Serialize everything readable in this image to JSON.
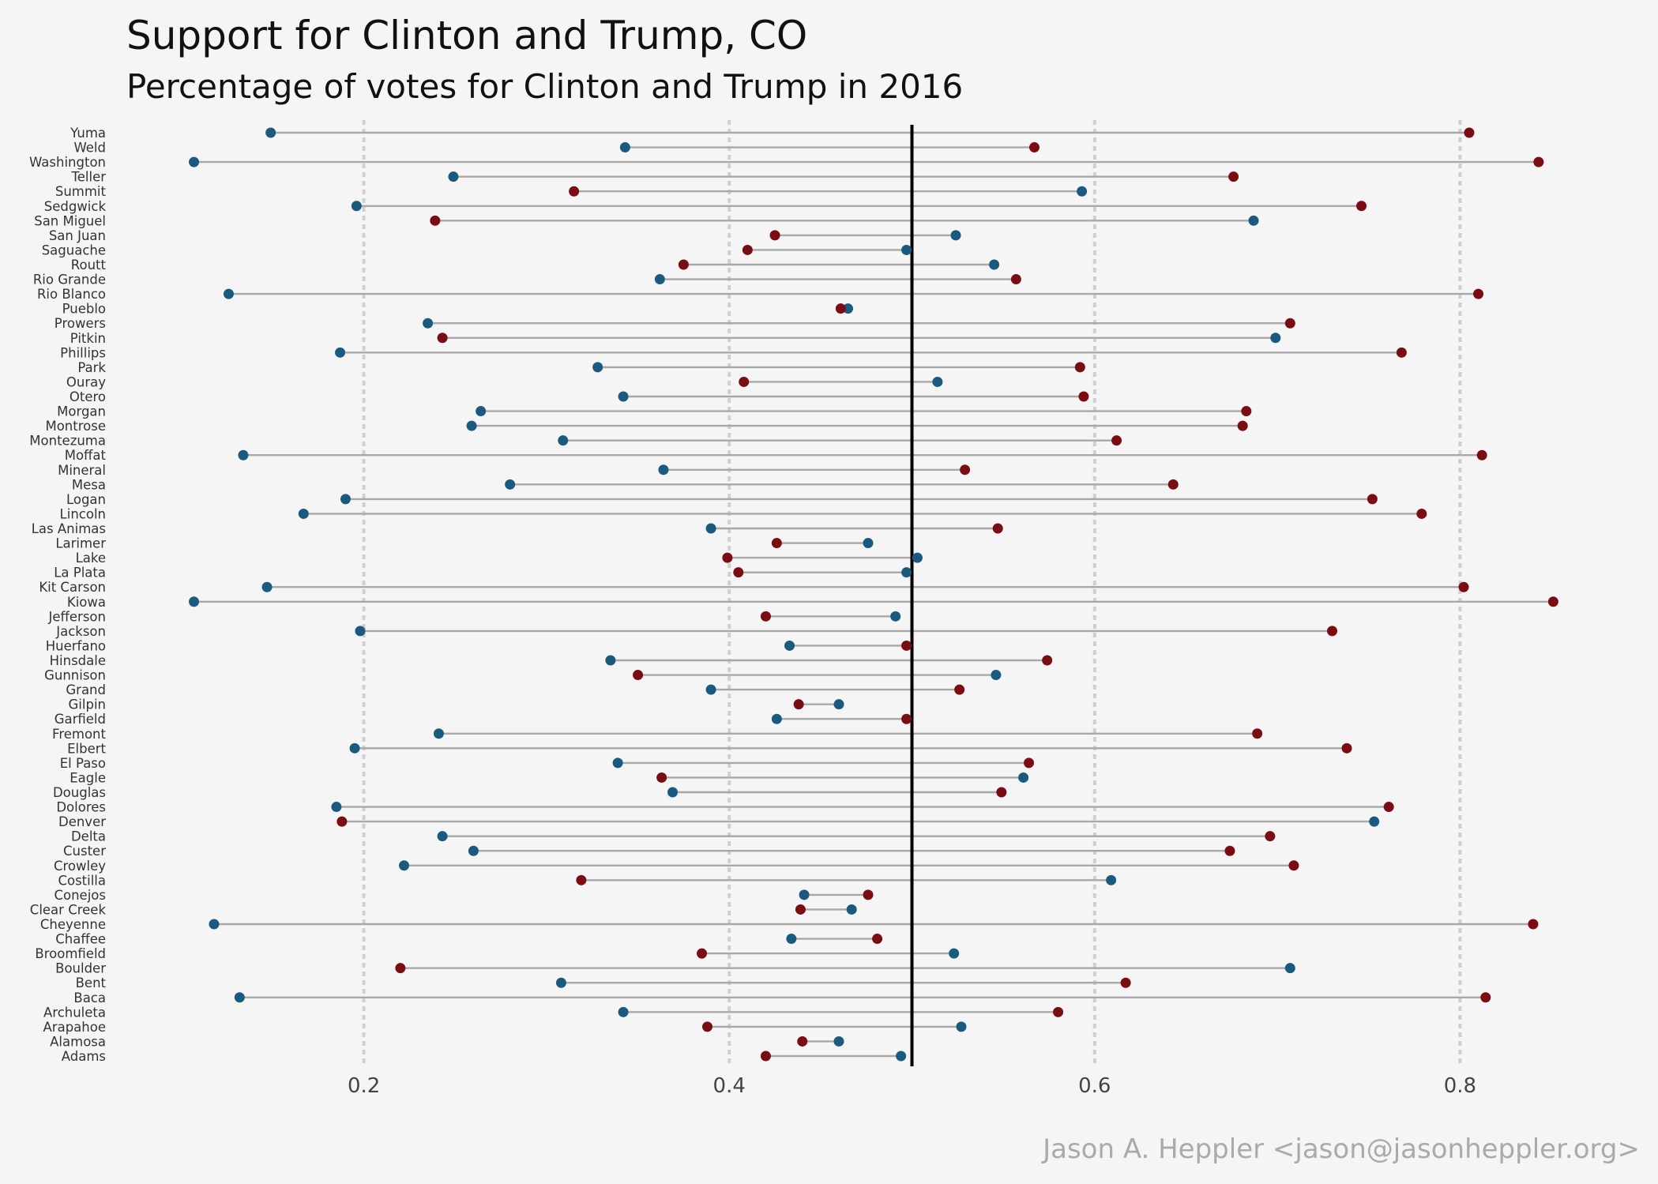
{
  "title": "Support for Clinton and Trump,  CO",
  "subtitle": "Percentage of votes for Clinton and Trump in 2016",
  "caption": "Jason A. Heppler <jason@jasonheppler.org>",
  "colors": {
    "clinton": "#1b5a7f",
    "trump": "#7a0d14",
    "segment": "#a8a8a8",
    "midline": "#000000",
    "background": "#f5f5f5"
  },
  "chart_data": {
    "type": "dumbbell",
    "x_ticks": [
      0.2,
      0.4,
      0.6,
      0.8
    ],
    "x_tick_labels": [
      "0.2",
      "0.4",
      "0.6",
      "0.8"
    ],
    "xlim": [
      0.067,
      0.869
    ],
    "reference_line": 0.5,
    "series": [
      {
        "key": "clinton",
        "color": "#1b5a7f"
      },
      {
        "key": "trump",
        "color": "#7a0d14"
      }
    ],
    "counties": [
      {
        "name": "Yuma",
        "clinton": 0.149,
        "trump": 0.805
      },
      {
        "name": "Weld",
        "clinton": 0.343,
        "trump": 0.567
      },
      {
        "name": "Washington",
        "clinton": 0.107,
        "trump": 0.843
      },
      {
        "name": "Teller",
        "clinton": 0.249,
        "trump": 0.676
      },
      {
        "name": "Summit",
        "clinton": 0.593,
        "trump": 0.315
      },
      {
        "name": "Sedgwick",
        "clinton": 0.196,
        "trump": 0.746
      },
      {
        "name": "San Miguel",
        "clinton": 0.687,
        "trump": 0.239
      },
      {
        "name": "San Juan",
        "clinton": 0.524,
        "trump": 0.425
      },
      {
        "name": "Saguache",
        "clinton": 0.497,
        "trump": 0.41
      },
      {
        "name": "Routt",
        "clinton": 0.545,
        "trump": 0.375
      },
      {
        "name": "Rio Grande",
        "clinton": 0.362,
        "trump": 0.557
      },
      {
        "name": "Rio Blanco",
        "clinton": 0.126,
        "trump": 0.81
      },
      {
        "name": "Pueblo",
        "clinton": 0.465,
        "trump": 0.461
      },
      {
        "name": "Prowers",
        "clinton": 0.235,
        "trump": 0.707
      },
      {
        "name": "Pitkin",
        "clinton": 0.699,
        "trump": 0.243
      },
      {
        "name": "Phillips",
        "clinton": 0.187,
        "trump": 0.768
      },
      {
        "name": "Park",
        "clinton": 0.328,
        "trump": 0.592
      },
      {
        "name": "Ouray",
        "clinton": 0.514,
        "trump": 0.408
      },
      {
        "name": "Otero",
        "clinton": 0.342,
        "trump": 0.594
      },
      {
        "name": "Morgan",
        "clinton": 0.264,
        "trump": 0.683
      },
      {
        "name": "Montrose",
        "clinton": 0.259,
        "trump": 0.681
      },
      {
        "name": "Montezuma",
        "clinton": 0.309,
        "trump": 0.612
      },
      {
        "name": "Moffat",
        "clinton": 0.134,
        "trump": 0.812
      },
      {
        "name": "Mineral",
        "clinton": 0.364,
        "trump": 0.529
      },
      {
        "name": "Mesa",
        "clinton": 0.28,
        "trump": 0.643
      },
      {
        "name": "Logan",
        "clinton": 0.19,
        "trump": 0.752
      },
      {
        "name": "Lincoln",
        "clinton": 0.167,
        "trump": 0.779
      },
      {
        "name": "Las Animas",
        "clinton": 0.39,
        "trump": 0.547
      },
      {
        "name": "Larimer",
        "clinton": 0.476,
        "trump": 0.426
      },
      {
        "name": "Lake",
        "clinton": 0.503,
        "trump": 0.399
      },
      {
        "name": "La Plata",
        "clinton": 0.497,
        "trump": 0.405
      },
      {
        "name": "Kit Carson",
        "clinton": 0.147,
        "trump": 0.802
      },
      {
        "name": "Kiowa",
        "clinton": 0.107,
        "trump": 0.851
      },
      {
        "name": "Jefferson",
        "clinton": 0.491,
        "trump": 0.42
      },
      {
        "name": "Jackson",
        "clinton": 0.198,
        "trump": 0.73
      },
      {
        "name": "Huerfano",
        "clinton": 0.433,
        "trump": 0.497
      },
      {
        "name": "Hinsdale",
        "clinton": 0.335,
        "trump": 0.574
      },
      {
        "name": "Gunnison",
        "clinton": 0.546,
        "trump": 0.35
      },
      {
        "name": "Grand",
        "clinton": 0.39,
        "trump": 0.526
      },
      {
        "name": "Gilpin",
        "clinton": 0.46,
        "trump": 0.438
      },
      {
        "name": "Garfield",
        "clinton": 0.426,
        "trump": 0.497
      },
      {
        "name": "Fremont",
        "clinton": 0.241,
        "trump": 0.689
      },
      {
        "name": "Elbert",
        "clinton": 0.195,
        "trump": 0.738
      },
      {
        "name": "El Paso",
        "clinton": 0.339,
        "trump": 0.564
      },
      {
        "name": "Eagle",
        "clinton": 0.561,
        "trump": 0.363
      },
      {
        "name": "Douglas",
        "clinton": 0.369,
        "trump": 0.549
      },
      {
        "name": "Dolores",
        "clinton": 0.185,
        "trump": 0.761
      },
      {
        "name": "Denver",
        "clinton": 0.753,
        "trump": 0.188
      },
      {
        "name": "Delta",
        "clinton": 0.243,
        "trump": 0.696
      },
      {
        "name": "Custer",
        "clinton": 0.26,
        "trump": 0.674
      },
      {
        "name": "Crowley",
        "clinton": 0.222,
        "trump": 0.709
      },
      {
        "name": "Costilla",
        "clinton": 0.609,
        "trump": 0.319
      },
      {
        "name": "Conejos",
        "clinton": 0.441,
        "trump": 0.476
      },
      {
        "name": "Clear Creek",
        "clinton": 0.467,
        "trump": 0.439
      },
      {
        "name": "Cheyenne",
        "clinton": 0.118,
        "trump": 0.84
      },
      {
        "name": "Chaffee",
        "clinton": 0.434,
        "trump": 0.481
      },
      {
        "name": "Broomfield",
        "clinton": 0.523,
        "trump": 0.385
      },
      {
        "name": "Boulder",
        "clinton": 0.707,
        "trump": 0.22
      },
      {
        "name": "Bent",
        "clinton": 0.308,
        "trump": 0.617
      },
      {
        "name": "Baca",
        "clinton": 0.132,
        "trump": 0.814
      },
      {
        "name": "Archuleta",
        "clinton": 0.342,
        "trump": 0.58
      },
      {
        "name": "Arapahoe",
        "clinton": 0.527,
        "trump": 0.388
      },
      {
        "name": "Alamosa",
        "clinton": 0.46,
        "trump": 0.44
      },
      {
        "name": "Adams",
        "clinton": 0.494,
        "trump": 0.42
      }
    ]
  }
}
